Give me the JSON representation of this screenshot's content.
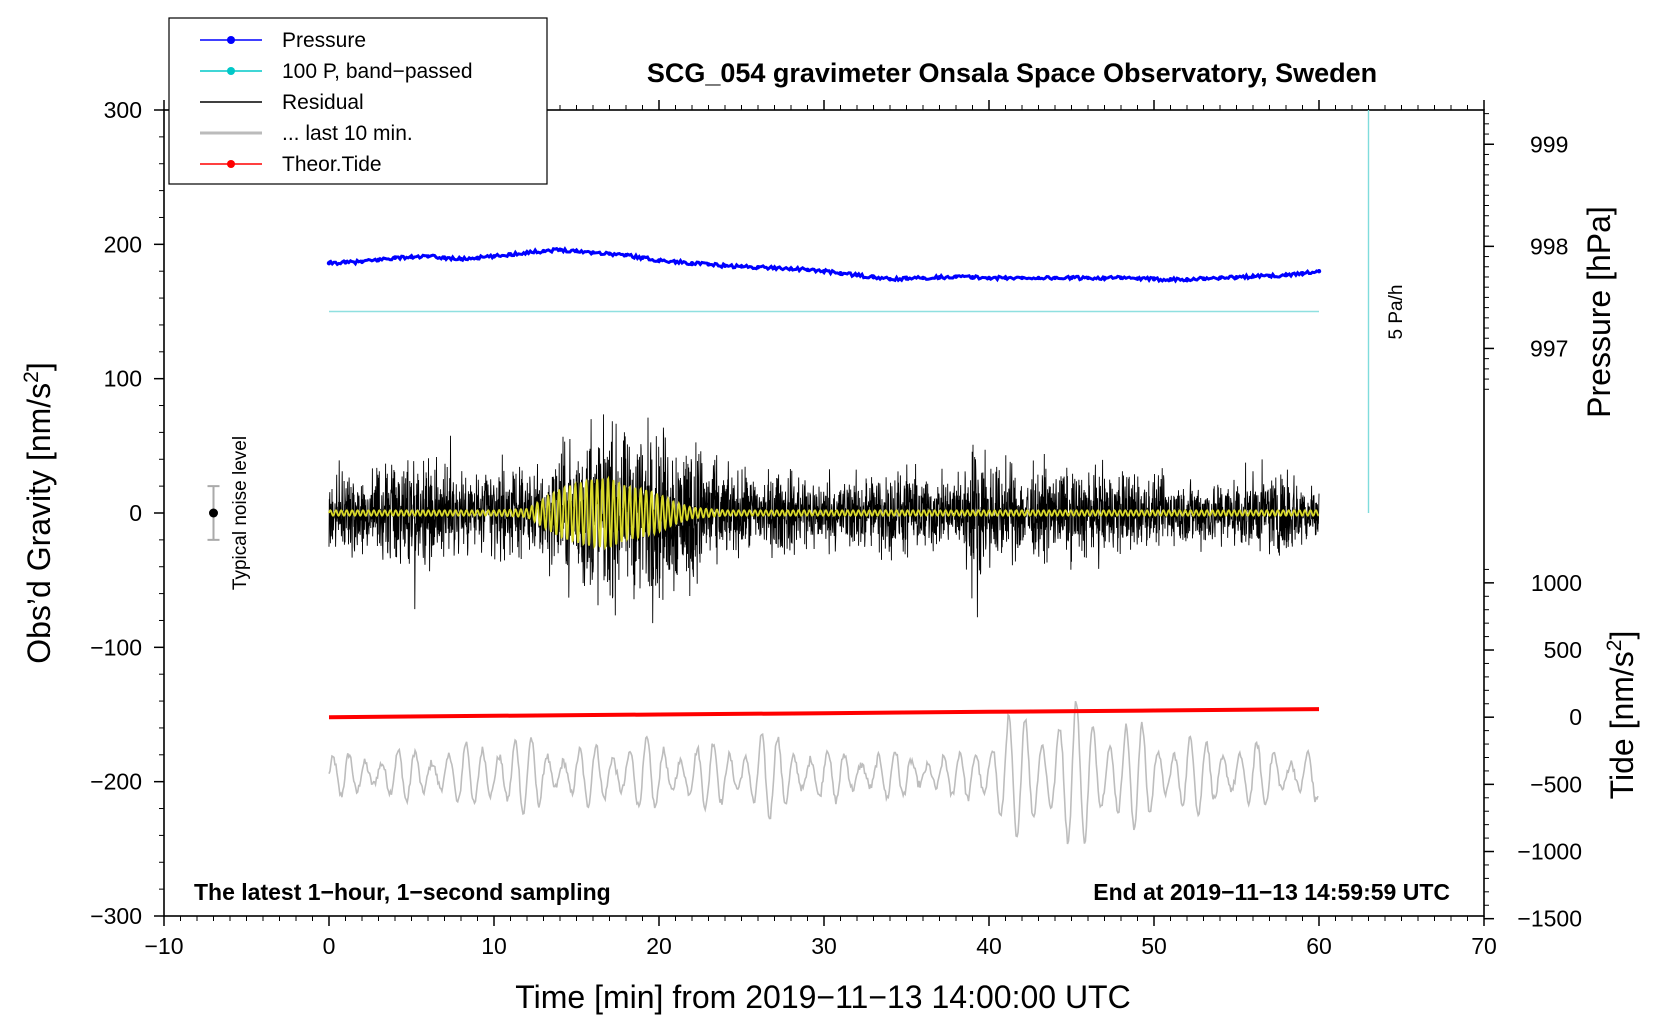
{
  "chart_data": {
    "type": "line",
    "title": "SCG_054 gravimeter Onsala Space Observatory, Sweden",
    "xlabel": "Time [min] from 2019−11−13 14:00:00 UTC",
    "ylabel_left_main": "Obs’d Gravity [nm/s",
    "ylabel_left_sup": "2",
    "ylabel_left_end": "]",
    "ylabel_right_pressure": "Pressure [hPa]",
    "ylabel_right_tide_main": "Tide [nm/s",
    "ylabel_right_tide_sup": "2",
    "ylabel_right_tide_end": "]",
    "xlim": [
      -10,
      70
    ],
    "ylim": [
      -300,
      300
    ],
    "x_ticks": [
      -10,
      0,
      10,
      20,
      30,
      40,
      50,
      60,
      70
    ],
    "x_tick_labels": [
      "−10",
      "0",
      "10",
      "20",
      "30",
      "40",
      "50",
      "60",
      "70"
    ],
    "y_ticks": [
      -300,
      -200,
      -100,
      0,
      100,
      200,
      300
    ],
    "y_tick_labels": [
      "−300",
      "−200",
      "−100",
      "0",
      "100",
      "200",
      "300"
    ],
    "pressure_ticks": [
      997,
      998,
      999
    ],
    "pressure_tick_labels": [
      "997",
      "998",
      "999"
    ],
    "tide_ticks": [
      -1500,
      -1000,
      -500,
      0,
      500,
      1000
    ],
    "tide_tick_labels": [
      "−1500",
      "−1000",
      "−500",
      "0",
      "500",
      "1000"
    ],
    "legend": [
      {
        "label": "Pressure",
        "color": "#0000ff",
        "marker": true
      },
      {
        "label": "100 P, band−passed",
        "color": "#00c8c8",
        "marker": true
      },
      {
        "label": "Residual",
        "color": "#000000",
        "marker": false
      },
      {
        "label": "... last 10 min.",
        "color": "#bbbbbb",
        "marker": false
      },
      {
        "label": "Theor.Tide",
        "color": "#ff0000",
        "marker": true
      }
    ],
    "legend_position": "top-left",
    "note_left": "The latest 1−hour, 1−second sampling",
    "note_right": "End at 2019−11−13 14:59:59 UTC",
    "noise_label": "Typical noise level",
    "noise_level": {
      "x": -7,
      "center": 0,
      "half_range": 20
    },
    "rate_label": "5 Pa/h",
    "rate_line": {
      "x": 63,
      "y_top": 300,
      "y_bottom": 0
    },
    "series": [
      {
        "name": "Pressure",
        "color": "#0000ff",
        "x": [
          0,
          2,
          4,
          6,
          8,
          10,
          12,
          14,
          16,
          18,
          20,
          22,
          24,
          26,
          28,
          30,
          32,
          34,
          36,
          38,
          40,
          42,
          44,
          46,
          48,
          50,
          52,
          54,
          56,
          58,
          60
        ],
        "y": [
          186,
          187,
          190,
          191,
          189,
          191,
          194,
          196,
          194,
          192,
          188,
          186,
          184,
          183,
          182,
          180,
          177,
          174,
          175,
          176,
          175,
          175,
          175,
          175,
          175,
          174,
          174,
          175,
          176,
          177,
          180
        ]
      },
      {
        "name": "100 P, band−passed",
        "color": "#00c8c8",
        "x": [
          0,
          60
        ],
        "y": [
          150,
          150
        ]
      },
      {
        "name": "Theor.Tide",
        "color": "#ff0000",
        "x": [
          0,
          10,
          20,
          30,
          40,
          50,
          60
        ],
        "y": [
          -152,
          -151,
          -150,
          -149,
          -148,
          -147,
          -146
        ]
      }
    ],
    "residual_amplitude_envelope": {
      "x": [
        0,
        3,
        5,
        8,
        10,
        12,
        14,
        15,
        16,
        18,
        19,
        20,
        22,
        24,
        26,
        28,
        30,
        32,
        35,
        38,
        39,
        40,
        42,
        44,
        46,
        48,
        50,
        52,
        54,
        56,
        58,
        60
      ],
      "amp": [
        40,
        45,
        65,
        45,
        50,
        40,
        70,
        75,
        95,
        80,
        100,
        90,
        80,
        45,
        40,
        45,
        35,
        40,
        45,
        35,
        75,
        55,
        45,
        45,
        45,
        45,
        35,
        35,
        35,
        40,
        45,
        25
      ]
    },
    "bandpass_amplitude_envelope": {
      "x": [
        0,
        10,
        12,
        14,
        15,
        16,
        17,
        18,
        19,
        20,
        21,
        22,
        24,
        30,
        40,
        50,
        60
      ],
      "amp": [
        2,
        2,
        3,
        18,
        22,
        25,
        26,
        20,
        18,
        14,
        8,
        4,
        2,
        2,
        2,
        2,
        2
      ]
    },
    "last10_center": -195,
    "last10_amplitude_envelope": {
      "x": [
        0,
        5,
        9,
        10,
        15,
        18,
        20,
        25,
        26,
        30,
        35,
        38,
        40,
        42,
        45,
        46,
        48,
        50,
        55,
        60
      ],
      "amp": [
        15,
        20,
        25,
        35,
        20,
        30,
        25,
        25,
        35,
        20,
        18,
        15,
        40,
        50,
        55,
        55,
        45,
        35,
        25,
        20
      ]
    }
  }
}
